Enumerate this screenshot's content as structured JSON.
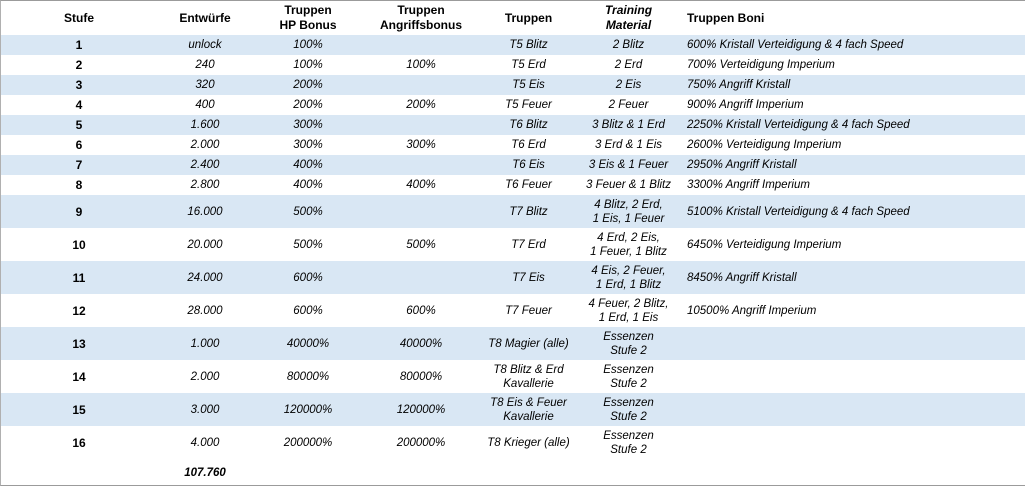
{
  "colors": {
    "row_alternate": "#d9e7f4",
    "row_base": "#ffffff",
    "border": "#9b9b9b",
    "text": "#000000"
  },
  "table": {
    "columns": [
      {
        "key": "stufe",
        "label": "Stufe"
      },
      {
        "key": "entwuerfe",
        "label": "Entwürfe"
      },
      {
        "key": "hp",
        "label": "Truppen\nHP Bonus"
      },
      {
        "key": "angriff",
        "label": "Truppen\nAngriffsbonus"
      },
      {
        "key": "truppen",
        "label": "Truppen"
      },
      {
        "key": "material",
        "label": "Training\nMaterial"
      },
      {
        "key": "boni",
        "label": "Truppen Boni"
      }
    ],
    "rows": [
      {
        "stufe": "1",
        "entwuerfe": "unlock",
        "hp": "100%",
        "angriff": "",
        "truppen": "T5 Blitz",
        "material": "2 Blitz",
        "boni": "600% Kristall Verteidigung & 4 fach Speed"
      },
      {
        "stufe": "2",
        "entwuerfe": "240",
        "hp": "100%",
        "angriff": "100%",
        "truppen": "T5 Erd",
        "material": "2 Erd",
        "boni": "700% Verteidigung Imperium"
      },
      {
        "stufe": "3",
        "entwuerfe": "320",
        "hp": "200%",
        "angriff": "",
        "truppen": "T5 Eis",
        "material": "2 Eis",
        "boni": "750% Angriff Kristall"
      },
      {
        "stufe": "4",
        "entwuerfe": "400",
        "hp": "200%",
        "angriff": "200%",
        "truppen": "T5 Feuer",
        "material": "2 Feuer",
        "boni": "900% Angriff Imperium"
      },
      {
        "stufe": "5",
        "entwuerfe": "1.600",
        "hp": "300%",
        "angriff": "",
        "truppen": "T6 Blitz",
        "material": "3 Blitz & 1 Erd",
        "boni": "2250% Kristall Verteidigung & 4 fach Speed"
      },
      {
        "stufe": "6",
        "entwuerfe": "2.000",
        "hp": "300%",
        "angriff": "300%",
        "truppen": "T6 Erd",
        "material": "3 Erd & 1 Eis",
        "boni": "2600% Verteidigung Imperium"
      },
      {
        "stufe": "7",
        "entwuerfe": "2.400",
        "hp": "400%",
        "angriff": "",
        "truppen": "T6 Eis",
        "material": "3 Eis & 1 Feuer",
        "boni": "2950% Angriff Kristall"
      },
      {
        "stufe": "8",
        "entwuerfe": "2.800",
        "hp": "400%",
        "angriff": "400%",
        "truppen": "T6 Feuer",
        "material": "3 Feuer & 1 Blitz",
        "boni": "3300% Angriff Imperium"
      },
      {
        "stufe": "9",
        "entwuerfe": "16.000",
        "hp": "500%",
        "angriff": "",
        "truppen": "T7 Blitz",
        "material": "4 Blitz, 2 Erd,\n1 Eis, 1 Feuer",
        "boni": "5100% Kristall Verteidigung & 4 fach Speed"
      },
      {
        "stufe": "10",
        "entwuerfe": "20.000",
        "hp": "500%",
        "angriff": "500%",
        "truppen": "T7 Erd",
        "material": "4 Erd, 2 Eis,\n1 Feuer, 1 Blitz",
        "boni": "6450% Verteidigung Imperium"
      },
      {
        "stufe": "11",
        "entwuerfe": "24.000",
        "hp": "600%",
        "angriff": "",
        "truppen": "T7 Eis",
        "material": "4 Eis, 2 Feuer,\n1 Erd, 1 Blitz",
        "boni": "8450% Angriff Kristall"
      },
      {
        "stufe": "12",
        "entwuerfe": "28.000",
        "hp": "600%",
        "angriff": "600%",
        "truppen": "T7 Feuer",
        "material": "4 Feuer, 2 Blitz,\n1 Erd, 1 Eis",
        "boni": "10500% Angriff Imperium"
      },
      {
        "stufe": "13",
        "entwuerfe": "1.000",
        "hp": "40000%",
        "angriff": "40000%",
        "truppen": "T8 Magier (alle)",
        "material": "Essenzen\nStufe 2",
        "boni": ""
      },
      {
        "stufe": "14",
        "entwuerfe": "2.000",
        "hp": "80000%",
        "angriff": "80000%",
        "truppen": "T8 Blitz & Erd\nKavallerie",
        "material": "Essenzen\nStufe 2",
        "boni": ""
      },
      {
        "stufe": "15",
        "entwuerfe": "3.000",
        "hp": "120000%",
        "angriff": "120000%",
        "truppen": "T8 Eis & Feuer\nKavallerie",
        "material": "Essenzen\nStufe 2",
        "boni": ""
      },
      {
        "stufe": "16",
        "entwuerfe": "4.000",
        "hp": "200000%",
        "angriff": "200000%",
        "truppen": "T8 Krieger (alle)",
        "material": "Essenzen\nStufe 2",
        "boni": ""
      }
    ],
    "total": {
      "stufe": "",
      "entwuerfe": "107.760",
      "hp": "",
      "angriff": "",
      "truppen": "",
      "material": "",
      "boni": ""
    }
  }
}
